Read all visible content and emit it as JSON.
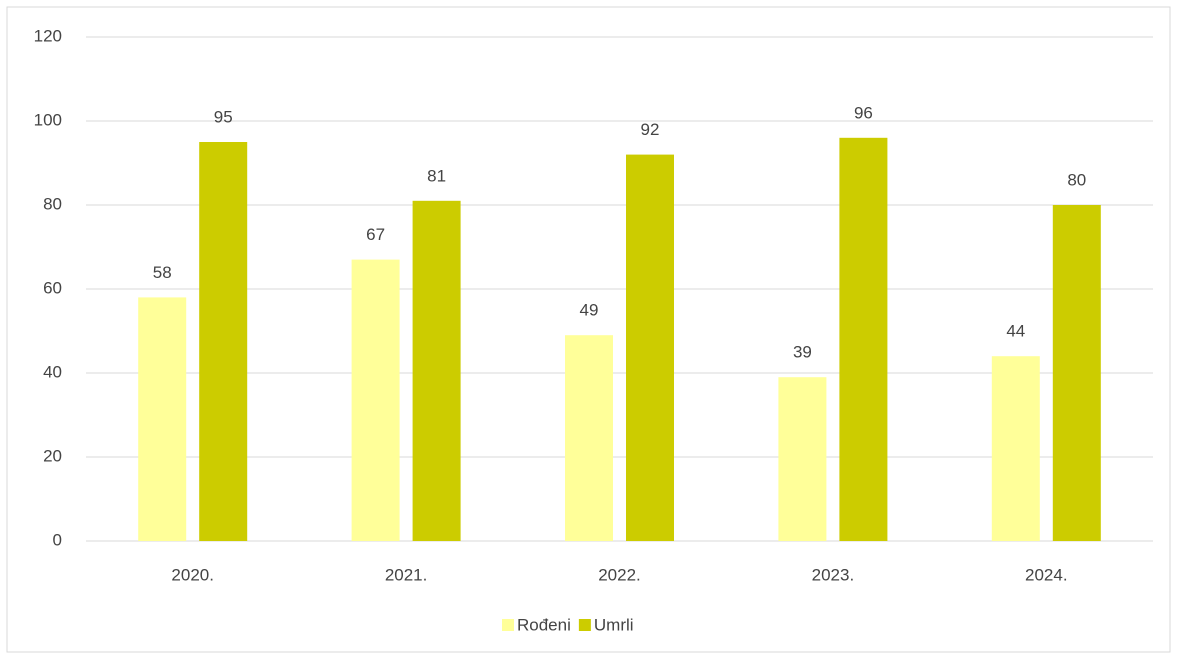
{
  "chart_data": {
    "type": "bar",
    "categories": [
      "2020.",
      "2021.",
      "2022.",
      "2023.",
      "2024."
    ],
    "series": [
      {
        "name": "Rođeni",
        "color": "#ffff99",
        "values": [
          58,
          67,
          49,
          39,
          44
        ]
      },
      {
        "name": "Umrli",
        "color": "#cccc00",
        "values": [
          95,
          81,
          92,
          96,
          80
        ]
      }
    ],
    "ylim": [
      0,
      120
    ],
    "yticks": [
      0,
      20,
      40,
      60,
      80,
      100,
      120
    ],
    "grid": true,
    "legend": "bottom"
  }
}
